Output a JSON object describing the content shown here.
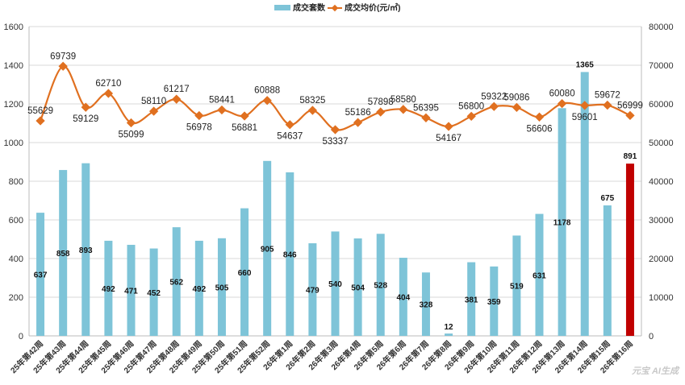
{
  "chart_data": {
    "type": "bar+line",
    "categories": [
      "25年第42周",
      "25年第43周",
      "25年第44周",
      "25年第45周",
      "25年第46周",
      "25年第47周",
      "25年第48周",
      "25年第49周",
      "25年第50周",
      "25年第51周",
      "25年第52周",
      "26年第1周",
      "26年第2周",
      "26年第3周",
      "26年第4周",
      "26年第5周",
      "26年第6周",
      "26年第7周",
      "26年第8周",
      "26年第9周",
      "26年第10周",
      "26年第11周",
      "26年第12周",
      "26年第13周",
      "26年第14周",
      "26年第15周",
      "26年第16周"
    ],
    "series": [
      {
        "name": "成交套数",
        "type": "bar",
        "axis": "left",
        "color": "#7ec4d8",
        "highlight_last_color": "#c00000",
        "values": [
          637,
          858,
          893,
          492,
          471,
          452,
          562,
          492,
          505,
          660,
          905,
          846,
          479,
          540,
          504,
          528,
          404,
          328,
          12,
          381,
          359,
          519,
          631,
          1178,
          1365,
          675,
          891
        ]
      },
      {
        "name": "成交均价(元/㎡)",
        "type": "line",
        "axis": "right",
        "color": "#e07020",
        "values": [
          55629,
          69739,
          59129,
          62710,
          55099,
          58110,
          61217,
          56978,
          58441,
          56881,
          60888,
          54637,
          58325,
          53337,
          55186,
          57898,
          58580,
          56395,
          54167,
          56800,
          59322,
          59086,
          56606,
          60080,
          59601,
          59672,
          56999
        ]
      }
    ],
    "y_left": {
      "range": [
        0,
        1600
      ],
      "ticks": [
        "0",
        "200",
        "400",
        "600",
        "800",
        "1000",
        "1200",
        "1400",
        "1600"
      ]
    },
    "y_right": {
      "range": [
        0,
        80000
      ],
      "ticks": [
        "0",
        "10000",
        "20000",
        "30000",
        "40000",
        "50000",
        "60000",
        "70000",
        "80000"
      ]
    },
    "grid": true,
    "legend": "top-center"
  },
  "watermark": "元宝 AI生成"
}
